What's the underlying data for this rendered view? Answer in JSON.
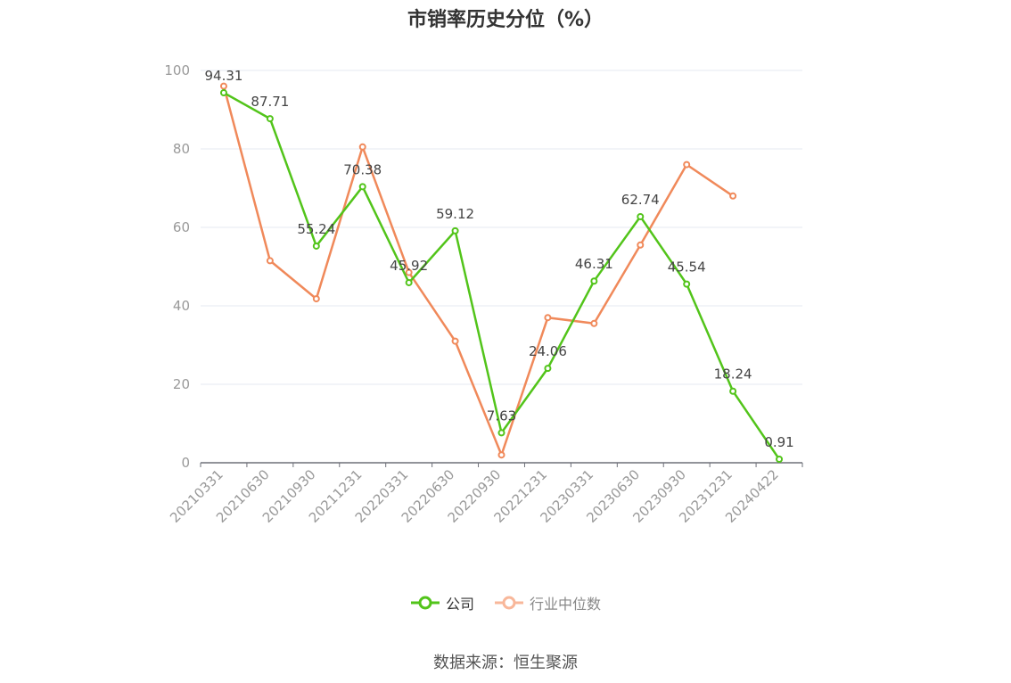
{
  "chart_data": {
    "type": "line",
    "title": "市销率历史分位（%）",
    "categories": [
      "20210331",
      "20210630",
      "20210930",
      "20211231",
      "20220331",
      "20220630",
      "20220930",
      "20221231",
      "20230331",
      "20230630",
      "20230930",
      "20231231",
      "20240422"
    ],
    "ylim": [
      0,
      100
    ],
    "yticks": [
      0,
      20,
      40,
      60,
      80,
      100
    ],
    "grid": true,
    "legend_position": "bottom",
    "series": [
      {
        "name": "公司",
        "color": "#52c41a",
        "show_labels": true,
        "values": [
          94.31,
          87.71,
          55.24,
          70.38,
          45.92,
          59.12,
          7.63,
          24.06,
          46.31,
          62.74,
          45.54,
          18.24,
          0.91
        ],
        "labels": [
          "94.31",
          "87.71",
          "55.24",
          "70.38",
          "45.92",
          "59.12",
          "7.63",
          "24.06",
          "46.31",
          "62.74",
          "45.54",
          "18.24",
          "0.91"
        ]
      },
      {
        "name": "行业中位数",
        "color": "#f0895a",
        "show_labels": false,
        "values": [
          96.0,
          51.5,
          41.8,
          80.5,
          48.5,
          31.0,
          2.0,
          37.0,
          35.5,
          55.5,
          76.0,
          68.0,
          null
        ]
      }
    ]
  },
  "legend": {
    "company": "公司",
    "industry": "行业中位数",
    "company_color": "#52c41a",
    "industry_color": "#f8b79a"
  },
  "source": "数据来源：恒生聚源"
}
